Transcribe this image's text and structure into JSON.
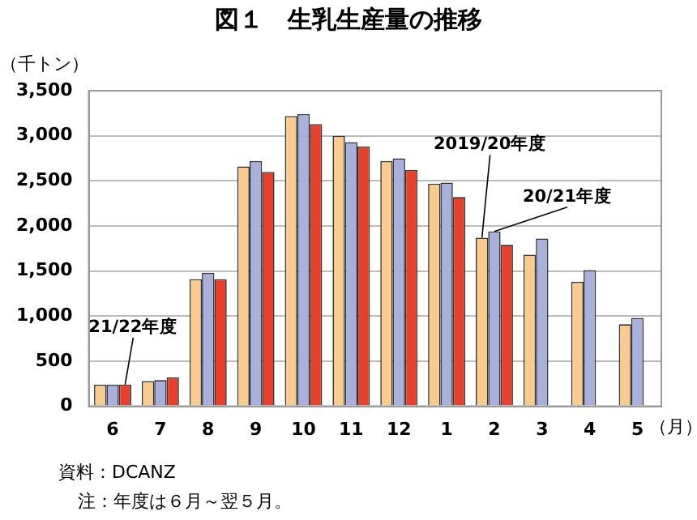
{
  "chart_data": {
    "type": "bar",
    "title": "図１　生乳生産量の推移",
    "ylabel": "（千トン）",
    "xlabel": "（月）",
    "categories": [
      "6",
      "7",
      "8",
      "9",
      "10",
      "11",
      "12",
      "1",
      "2",
      "3",
      "4",
      "5"
    ],
    "series": [
      {
        "color": "#f9cb8f",
        "values": [
          240,
          280,
          1410,
          2660,
          3220,
          3000,
          2720,
          2470,
          1870,
          1680,
          1380,
          910
        ]
      },
      {
        "color": "#aab0dc",
        "values": [
          240,
          290,
          1480,
          2720,
          3240,
          2930,
          2750,
          2480,
          1940,
          1860,
          1510,
          980
        ]
      },
      {
        "color": "#e8402a",
        "values": [
          240,
          320,
          1410,
          2600,
          3130,
          2880,
          2620,
          2320,
          1790,
          null,
          null,
          null
        ]
      }
    ],
    "ylim": [
      0,
      3500
    ],
    "yticks": [
      0,
      500,
      {
        "value": 1000,
        "label": "1,000"
      },
      {
        "value": 1500,
        "label": "1,500"
      },
      {
        "value": 2000,
        "label": "2,000"
      },
      {
        "value": 2500,
        "label": "2,500"
      },
      {
        "value": 3000,
        "label": "3,000"
      },
      {
        "value": 3500,
        "label": "3,500"
      }
    ],
    "grid": "y",
    "legend": false,
    "annotations": [
      {
        "text": "2019/20年度",
        "x": "2",
        "y": 1870
      },
      {
        "text": "20/21年度",
        "x": "2",
        "y": 1940
      },
      {
        "text": "21/22年度",
        "x": "6",
        "y": 240
      },
      "資料：DCANZ",
      "注：年度は６月～翌５月。"
    ]
  }
}
